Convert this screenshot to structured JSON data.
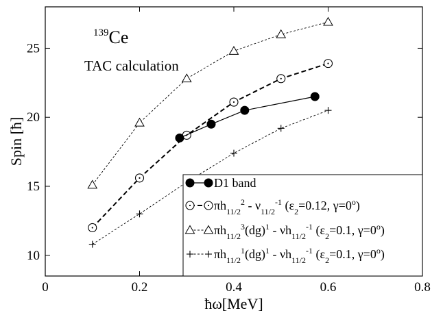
{
  "chart_data": {
    "type": "line",
    "title": "",
    "xlabel": "ħω[MeV]",
    "ylabel": "Spin [ħ]",
    "xlim": [
      0,
      0.8
    ],
    "ylim": [
      8.5,
      28
    ],
    "xticks": [
      0,
      0.2,
      0.4,
      0.6,
      0.8
    ],
    "xtick_labels": [
      "0",
      "0.2",
      "0.4",
      "0.6",
      "0.8"
    ],
    "yticks": [
      10,
      15,
      20,
      25
    ],
    "ytick_labels": [
      "10",
      "15",
      "20",
      "25"
    ],
    "grid": false,
    "legend_position": "bottom-right",
    "annotations": [
      {
        "id": "nucleus",
        "sup": "139",
        "text": "Ce"
      },
      {
        "id": "method",
        "text": "TAC calculation"
      }
    ],
    "series": [
      {
        "id": "d1",
        "legend_label": [
          {
            "t": "D1 band"
          }
        ],
        "marker": "filled-circle",
        "line": "solid",
        "x": [
          0.285,
          0.352,
          0.423,
          0.572
        ],
        "y": [
          18.5,
          19.5,
          20.5,
          21.5
        ]
      },
      {
        "id": "config-a",
        "legend_label": [
          {
            "t": "πh"
          },
          {
            "t": "11/2",
            "s": "sub"
          },
          {
            "t": "2",
            "s": "sup"
          },
          {
            "t": " - ν"
          },
          {
            "t": "11/2",
            "s": "sub"
          },
          {
            "t": "-1",
            "s": "sup"
          },
          {
            "t": " (ε"
          },
          {
            "t": "2",
            "s": "sub"
          },
          {
            "t": "=0.12, γ=0"
          },
          {
            "t": "o",
            "s": "sup"
          },
          {
            "t": ")"
          }
        ],
        "marker": "open-circle-dot",
        "line": "dashed-thick",
        "x": [
          0.1,
          0.2,
          0.3,
          0.4,
          0.5,
          0.6
        ],
        "y": [
          12.0,
          15.6,
          18.7,
          21.1,
          22.8,
          23.9
        ]
      },
      {
        "id": "config-b",
        "legend_label": [
          {
            "t": "πh"
          },
          {
            "t": "11/2",
            "s": "sub"
          },
          {
            "t": "3",
            "s": "sup"
          },
          {
            "t": "(dg)"
          },
          {
            "t": "1",
            "s": "sup"
          },
          {
            "t": " - νh"
          },
          {
            "t": "11/2",
            "s": "sub"
          },
          {
            "t": "-1",
            "s": "sup"
          },
          {
            "t": " (ε"
          },
          {
            "t": "2",
            "s": "sub"
          },
          {
            "t": "=0.1, γ=0"
          },
          {
            "t": "o",
            "s": "sup"
          },
          {
            "t": ")"
          }
        ],
        "marker": "open-triangle",
        "line": "dashed-thin",
        "x": [
          0.1,
          0.2,
          0.3,
          0.4,
          0.5,
          0.6
        ],
        "y": [
          15.1,
          19.6,
          22.8,
          24.8,
          26.0,
          26.9
        ]
      },
      {
        "id": "config-c",
        "legend_label": [
          {
            "t": "πh"
          },
          {
            "t": "11/2",
            "s": "sub"
          },
          {
            "t": "1",
            "s": "sup"
          },
          {
            "t": "(dg)"
          },
          {
            "t": "1",
            "s": "sup"
          },
          {
            "t": " - νh"
          },
          {
            "t": "11/2",
            "s": "sub"
          },
          {
            "t": "-1",
            "s": "sup"
          },
          {
            "t": " (ε"
          },
          {
            "t": "2",
            "s": "sub"
          },
          {
            "t": "=0.1, γ=0"
          },
          {
            "t": "o",
            "s": "sup"
          },
          {
            "t": ")"
          }
        ],
        "marker": "plus",
        "line": "dashed-thin",
        "x": [
          0.1,
          0.2,
          0.3,
          0.4,
          0.5,
          0.6
        ],
        "y": [
          10.8,
          13.0,
          15.3,
          17.4,
          19.2,
          20.5
        ]
      }
    ]
  }
}
